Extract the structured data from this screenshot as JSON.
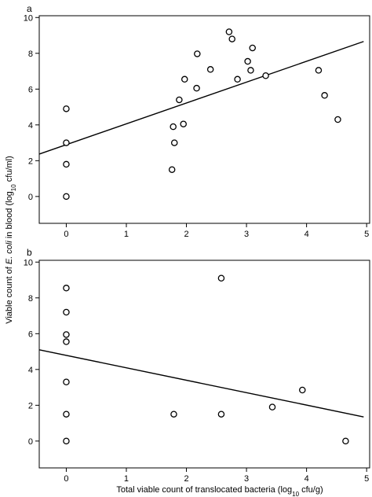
{
  "chart_data": [
    {
      "type": "scatter",
      "panel_label": "a",
      "xlim": [
        -0.45,
        5.05
      ],
      "ylim": [
        -1.5,
        10.1
      ],
      "x_ticks": [
        0,
        1,
        2,
        3,
        4,
        5
      ],
      "y_ticks": [
        0,
        2,
        4,
        6,
        8,
        10
      ],
      "points": [
        {
          "x": 0,
          "y": 4.9
        },
        {
          "x": 0,
          "y": 3.0
        },
        {
          "x": 0,
          "y": 1.8
        },
        {
          "x": 0,
          "y": 0.0
        },
        {
          "x": 1.76,
          "y": 1.5
        },
        {
          "x": 1.78,
          "y": 3.9
        },
        {
          "x": 1.8,
          "y": 3.0
        },
        {
          "x": 1.88,
          "y": 5.4
        },
        {
          "x": 1.95,
          "y": 4.05
        },
        {
          "x": 1.97,
          "y": 6.55
        },
        {
          "x": 2.17,
          "y": 6.05
        },
        {
          "x": 2.18,
          "y": 7.97
        },
        {
          "x": 2.4,
          "y": 7.1
        },
        {
          "x": 2.71,
          "y": 9.2
        },
        {
          "x": 2.76,
          "y": 8.8
        },
        {
          "x": 2.85,
          "y": 6.55
        },
        {
          "x": 3.02,
          "y": 7.55
        },
        {
          "x": 3.07,
          "y": 7.05
        },
        {
          "x": 3.1,
          "y": 8.3
        },
        {
          "x": 3.32,
          "y": 6.75
        },
        {
          "x": 4.2,
          "y": 7.05
        },
        {
          "x": 4.3,
          "y": 5.65
        },
        {
          "x": 4.52,
          "y": 4.3
        }
      ],
      "fit_line": {
        "x": [
          -0.45,
          4.95
        ],
        "y": [
          2.37,
          8.66
        ]
      }
    },
    {
      "type": "scatter",
      "panel_label": "b",
      "xlim": [
        -0.45,
        5.05
      ],
      "ylim": [
        -1.5,
        10.1
      ],
      "x_ticks": [
        0,
        1,
        2,
        3,
        4,
        5
      ],
      "y_ticks": [
        0,
        2,
        4,
        6,
        8,
        10
      ],
      "points": [
        {
          "x": 0,
          "y": 8.55
        },
        {
          "x": 0,
          "y": 7.2
        },
        {
          "x": 0,
          "y": 5.95
        },
        {
          "x": 0,
          "y": 5.55
        },
        {
          "x": 0,
          "y": 3.3
        },
        {
          "x": 0,
          "y": 1.5
        },
        {
          "x": 0,
          "y": 0.0
        },
        {
          "x": 1.79,
          "y": 1.5
        },
        {
          "x": 2.58,
          "y": 9.1
        },
        {
          "x": 2.58,
          "y": 1.5
        },
        {
          "x": 3.43,
          "y": 1.9
        },
        {
          "x": 3.93,
          "y": 2.85
        },
        {
          "x": 4.65,
          "y": 0.0
        }
      ],
      "fit_line": {
        "x": [
          -0.45,
          4.95
        ],
        "y": [
          5.1,
          1.35
        ]
      }
    }
  ],
  "shared_xlabel": "Total viable count of translocated bacteria (log",
  "shared_xlabel_sub": "10",
  "shared_xlabel_suffix": " cfu/g)",
  "shared_ylabel_prefix": "Viable count of ",
  "shared_ylabel_italic": "E. coli",
  "shared_ylabel_mid": " in blood (log",
  "shared_ylabel_sub": "10",
  "shared_ylabel_suffix": " cfu/ml)"
}
